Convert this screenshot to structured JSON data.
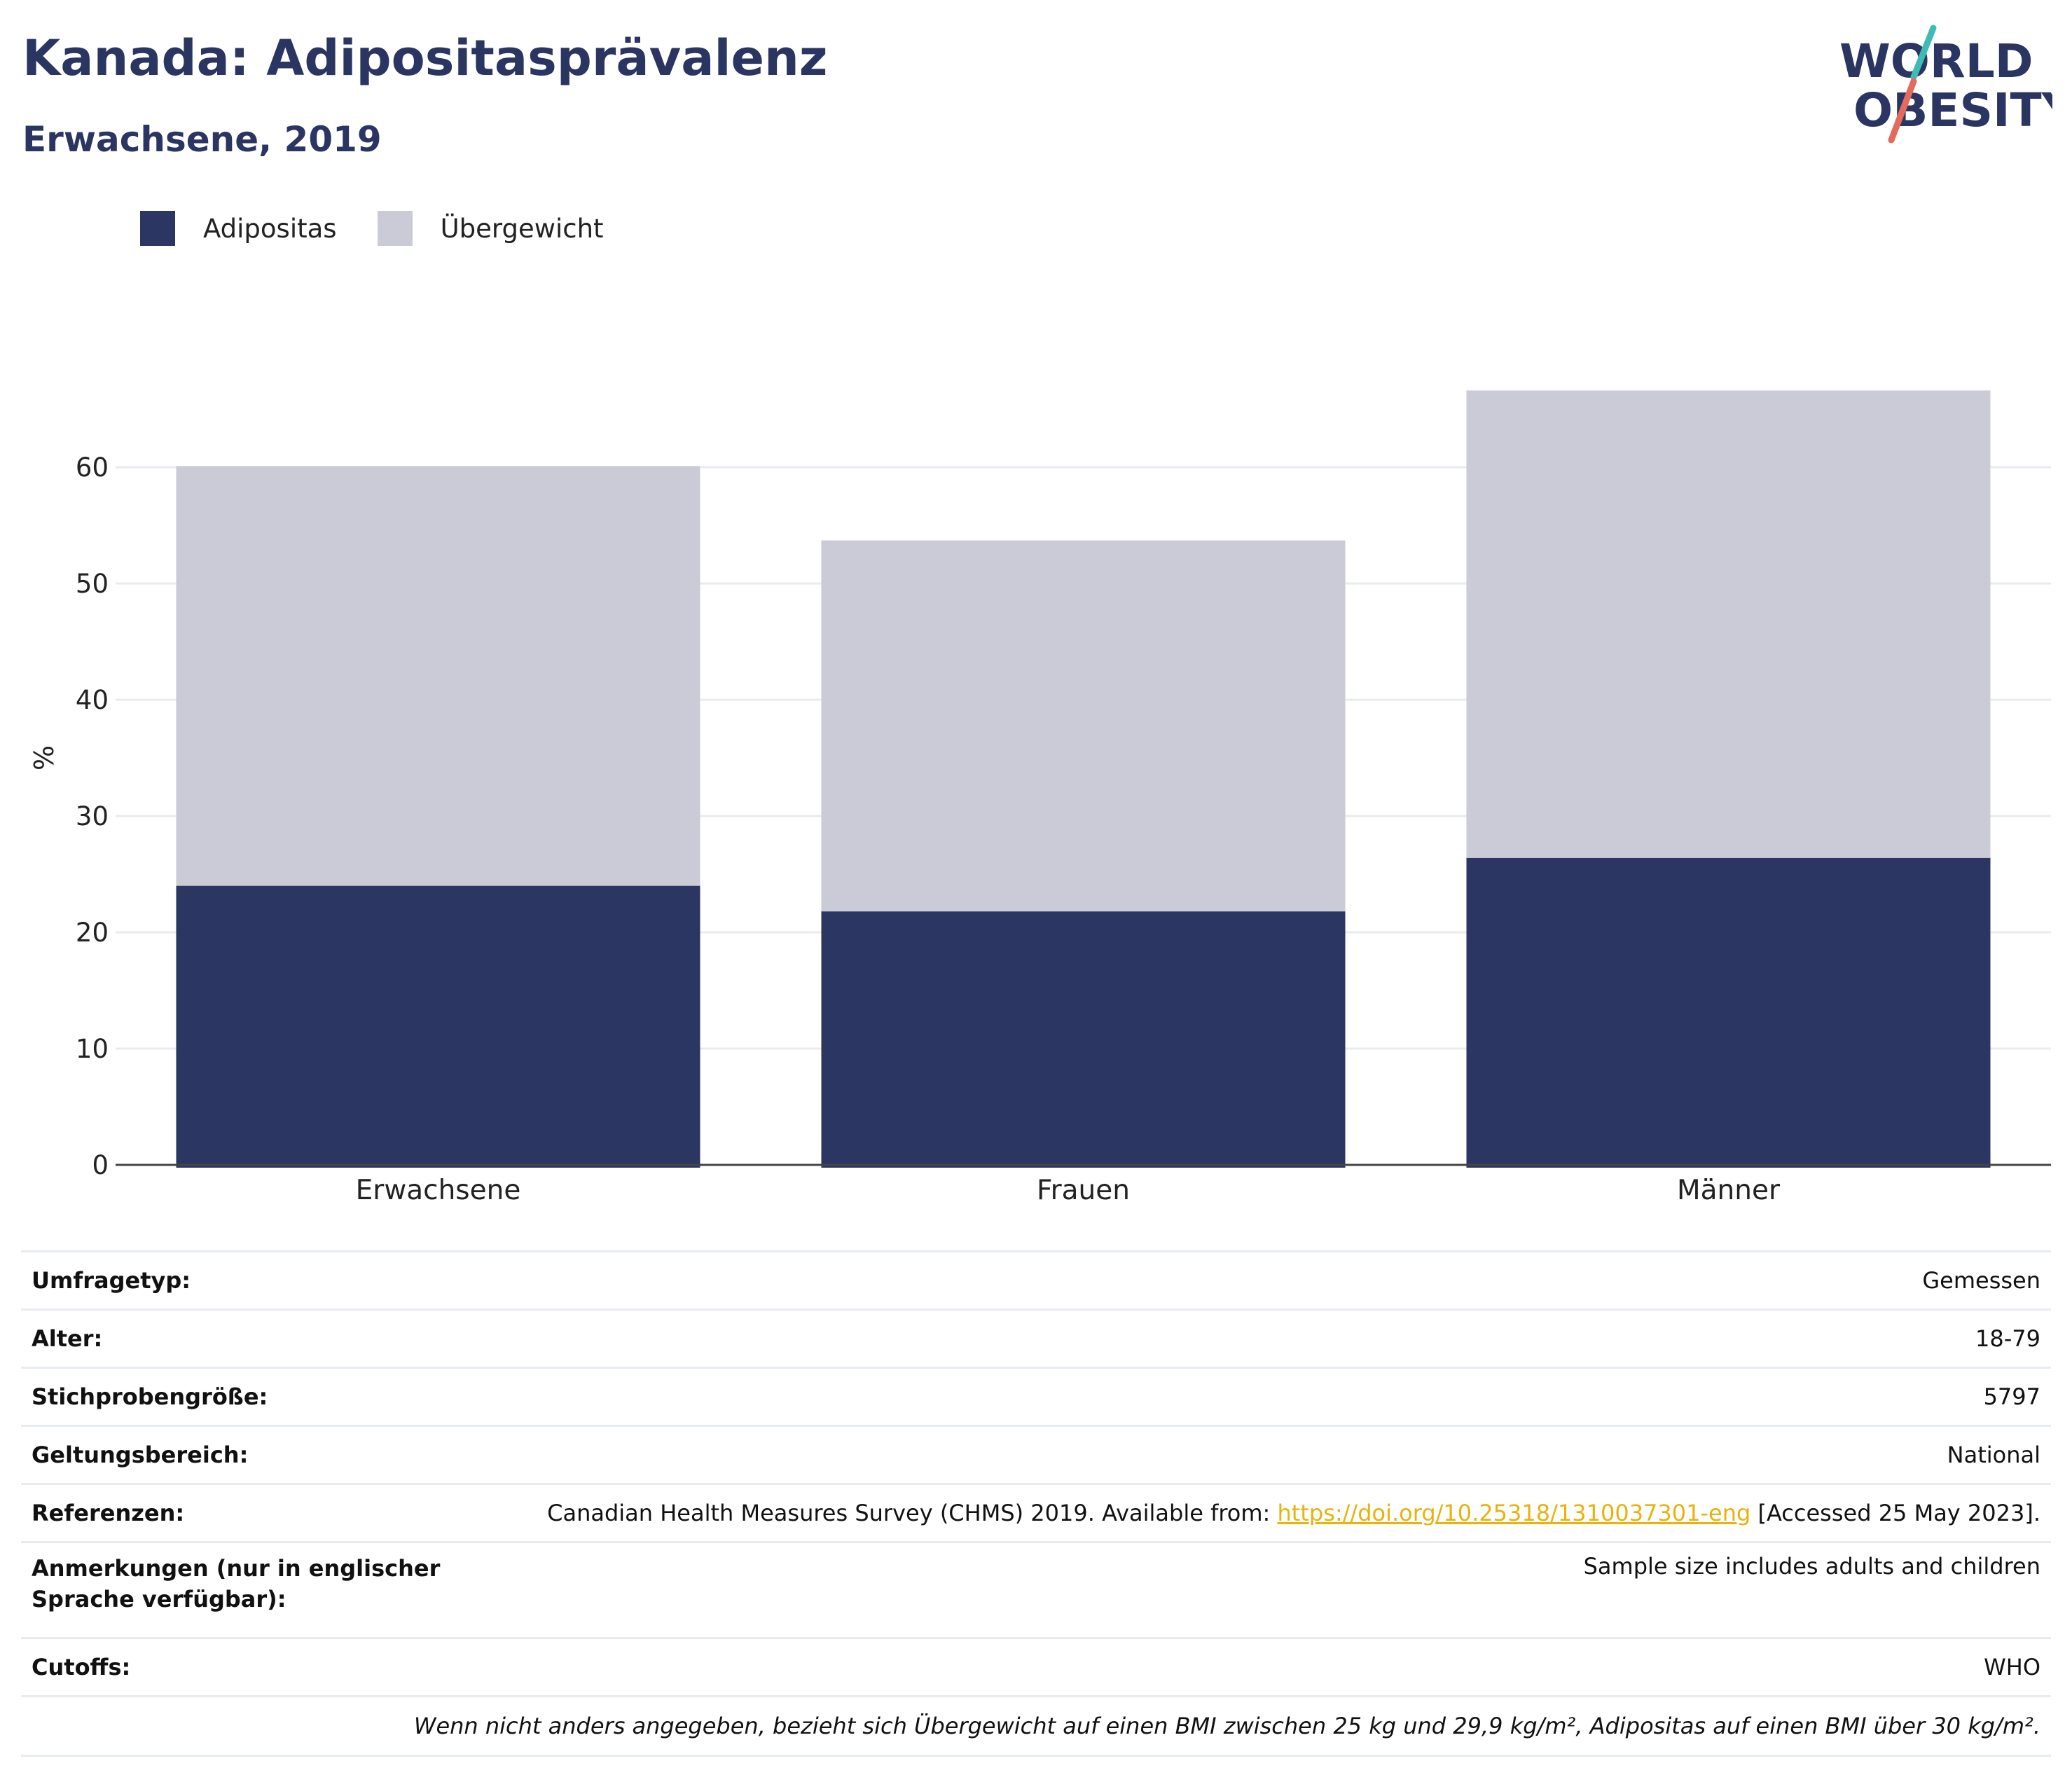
{
  "header": {
    "title": "Kanada: Adipositasprävalenz",
    "subtitle": "Erwachsene, 2019",
    "logo_line1": "WORLD",
    "logo_line2": "OBESITY"
  },
  "legend": [
    {
      "label": "Adipositas",
      "color": "#2b3663"
    },
    {
      "label": "Übergewicht",
      "color": "#cacbd6"
    }
  ],
  "chart_data": {
    "type": "bar",
    "stacked": true,
    "categories": [
      "Erwachsene",
      "Frauen",
      "Männer"
    ],
    "series": [
      {
        "name": "Adipositas",
        "values": [
          24.0,
          21.8,
          26.4
        ],
        "color": "#2b3663"
      },
      {
        "name": "Übergewicht",
        "values": [
          36.1,
          31.9,
          40.2
        ],
        "color": "#cacbd6"
      }
    ],
    "ylabel": "%",
    "ylim": [
      0,
      70
    ],
    "yticks": [
      0,
      10,
      20,
      30,
      40,
      50,
      60
    ],
    "grid": true,
    "legend_position": "top-left"
  },
  "info": {
    "rows": [
      {
        "label": "Umfragetyp:",
        "value": "Gemessen"
      },
      {
        "label": "Alter:",
        "value": "18-79"
      },
      {
        "label": "Stichprobengröße:",
        "value": "5797"
      },
      {
        "label": "Geltungsbereich:",
        "value": "National"
      },
      {
        "label": "Referenzen:",
        "value_pre": "Canadian Health Measures Survey (CHMS) 2019. Available from: ",
        "link": "https://doi.org/10.25318/1310037301-eng",
        "value_post": " [Accessed 25 May 2023]."
      },
      {
        "label": "Anmerkungen (nur in englischer Sprache verfügbar):",
        "value": "Sample size includes adults and children"
      },
      {
        "label": "Cutoffs:",
        "value": "WHO"
      }
    ],
    "footnote": "Wenn nicht anders angegeben, bezieht sich Übergewicht auf einen BMI zwischen 25 kg und 29,9 kg/m², Adipositas auf einen BMI über 30 kg/m²."
  }
}
